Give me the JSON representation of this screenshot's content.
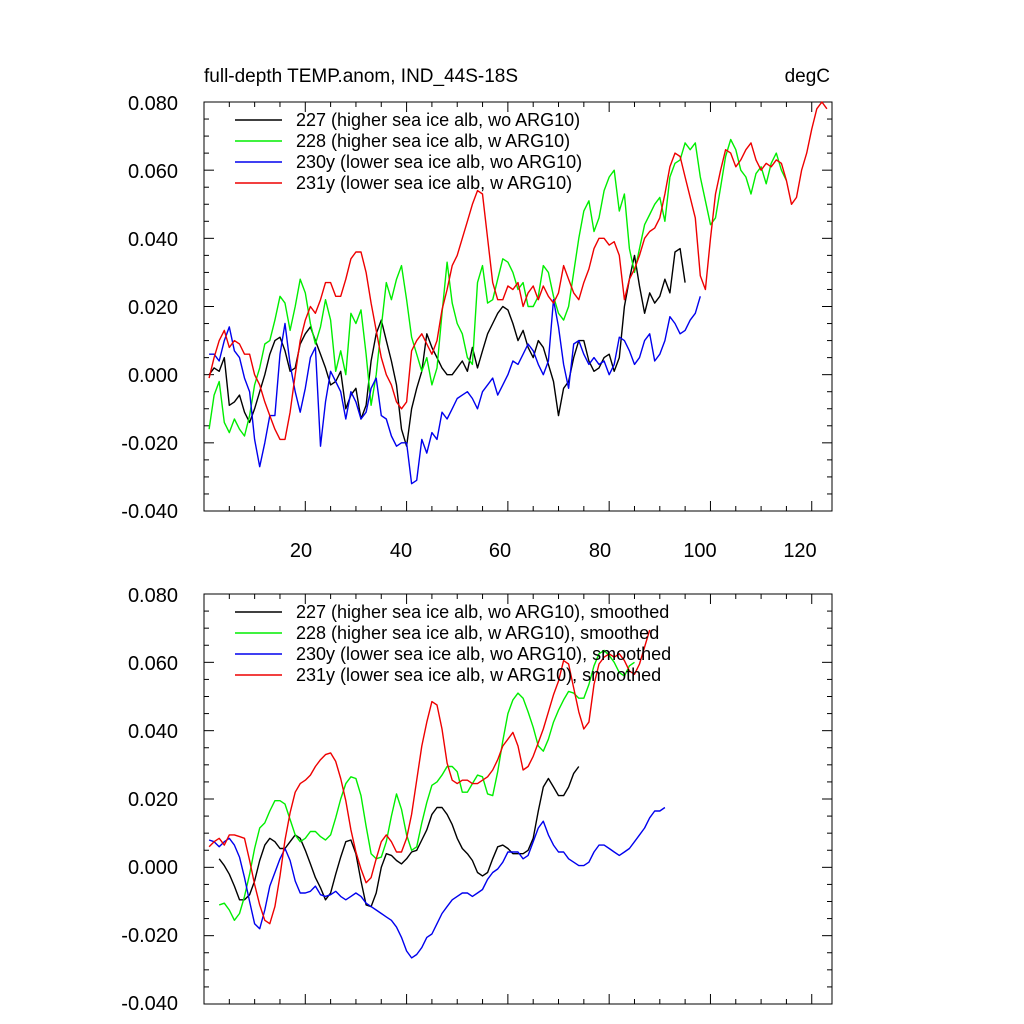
{
  "chart_data": [
    {
      "type": "line",
      "title": "full-depth TEMP.anom, IND_44S-18S",
      "units": "degC",
      "xlabel": "",
      "ylabel": "",
      "xlim": [
        0,
        124
      ],
      "ylim": [
        -0.04,
        0.08
      ],
      "xticks": [
        "20",
        "40",
        "60",
        "80",
        "100",
        "120"
      ],
      "yticks": [
        "-0.040",
        "-0.020",
        "0.000",
        "0.020",
        "0.040",
        "0.060",
        "0.080"
      ],
      "legend_position": "top-left",
      "series": [
        {
          "name": "227 (higher sea ice alb, wo ARG10)",
          "color": "#000000",
          "x0": 1,
          "values": [
            0.0,
            0.002,
            0.001,
            0.005,
            -0.009,
            -0.008,
            -0.006,
            -0.011,
            -0.014,
            -0.01,
            -0.005,
            0.0,
            0.006,
            0.01,
            0.011,
            0.007,
            0.001,
            0.002,
            0.009,
            0.012,
            0.014,
            0.01,
            0.006,
            0.002,
            -0.003,
            -0.002,
            0.001,
            -0.01,
            -0.006,
            -0.004,
            -0.013,
            -0.009,
            0.004,
            0.012,
            0.016,
            0.01,
            0.004,
            -0.003,
            -0.016,
            -0.021,
            -0.01,
            -0.004,
            0.001,
            0.012,
            0.008,
            0.005,
            0.002,
            0.0,
            0.0,
            0.002,
            0.004,
            0.001,
            0.008,
            0.002,
            0.007,
            0.012,
            0.015,
            0.018,
            0.02,
            0.019,
            0.015,
            0.01,
            0.013,
            0.008,
            0.005,
            0.01,
            0.008,
            0.003,
            -0.002,
            -0.012,
            -0.004,
            -0.002,
            0.005,
            0.01,
            0.01,
            0.004,
            0.001,
            0.002,
            0.005,
            0.006,
            0.001,
            0.005,
            0.02,
            0.028,
            0.035,
            0.026,
            0.018,
            0.024,
            0.021,
            0.023,
            0.028,
            0.024,
            0.036,
            0.037,
            0.027
          ]
        },
        {
          "name": "228 (higher sea ice alb, w ARG10)",
          "color": "#00ee00",
          "x0": 1,
          "values": [
            -0.016,
            -0.006,
            -0.002,
            -0.014,
            -0.017,
            -0.013,
            -0.016,
            -0.018,
            -0.012,
            -0.003,
            0.002,
            0.009,
            0.01,
            0.016,
            0.023,
            0.021,
            0.013,
            0.02,
            0.028,
            0.024,
            0.015,
            0.009,
            0.014,
            0.022,
            0.016,
            0.001,
            0.007,
            0.0,
            0.018,
            0.015,
            0.019,
            0.006,
            -0.009,
            0.0,
            0.014,
            0.027,
            0.022,
            0.028,
            0.032,
            0.022,
            0.011,
            0.006,
            0.001,
            0.005,
            -0.003,
            0.002,
            0.018,
            0.033,
            0.021,
            0.015,
            0.012,
            0.005,
            0.003,
            0.027,
            0.032,
            0.021,
            0.022,
            0.028,
            0.034,
            0.033,
            0.03,
            0.025,
            0.027,
            0.02,
            0.02,
            0.023,
            0.032,
            0.03,
            0.023,
            0.018,
            0.016,
            0.02,
            0.03,
            0.04,
            0.048,
            0.051,
            0.042,
            0.046,
            0.054,
            0.058,
            0.06,
            0.048,
            0.053,
            0.037,
            0.03,
            0.037,
            0.044,
            0.047,
            0.05,
            0.052,
            0.045,
            0.058,
            0.062,
            0.063,
            0.068,
            0.066,
            0.068,
            0.058,
            0.051,
            0.044,
            0.046,
            0.055,
            0.064,
            0.069,
            0.066,
            0.06,
            0.058,
            0.053,
            0.059,
            0.061,
            0.056,
            0.062,
            0.065,
            0.06,
            0.057
          ]
        },
        {
          "name": "230y (lower sea ice alb, wo ARG10)",
          "color": "#0000ee",
          "x0": 1,
          "values": [
            0.006,
            0.006,
            0.004,
            0.01,
            0.014,
            0.007,
            0.005,
            -0.001,
            -0.005,
            -0.019,
            -0.027,
            -0.02,
            -0.012,
            -0.012,
            0.006,
            0.015,
            0.003,
            -0.005,
            -0.011,
            -0.004,
            0.005,
            0.008,
            -0.021,
            -0.008,
            0.001,
            -0.002,
            -0.005,
            -0.013,
            -0.005,
            -0.008,
            -0.013,
            -0.011,
            -0.004,
            -0.001,
            -0.012,
            -0.013,
            -0.018,
            -0.021,
            -0.02,
            -0.02,
            -0.032,
            -0.031,
            -0.019,
            -0.023,
            -0.017,
            -0.019,
            -0.011,
            -0.013,
            -0.01,
            -0.007,
            -0.006,
            -0.005,
            -0.007,
            -0.01,
            -0.005,
            -0.003,
            -0.001,
            -0.006,
            -0.003,
            0.0,
            0.004,
            0.003,
            0.006,
            0.009,
            0.007,
            0.003,
            0.0,
            0.004,
            0.022,
            0.014,
            0.003,
            -0.004,
            0.009,
            0.01,
            0.006,
            0.003,
            0.005,
            0.003,
            0.004,
            0.0,
            0.003,
            0.011,
            0.01,
            0.007,
            0.003,
            0.005,
            0.01,
            0.012,
            0.004,
            0.006,
            0.01,
            0.017,
            0.015,
            0.012,
            0.013,
            0.016,
            0.018,
            0.023
          ]
        },
        {
          "name": "231y (lower sea ice alb, w ARG10)",
          "color": "#ee0000",
          "x0": 1,
          "values": [
            -0.001,
            0.005,
            0.01,
            0.013,
            0.008,
            0.01,
            0.009,
            0.006,
            0.006,
            0.0,
            -0.003,
            -0.008,
            -0.012,
            -0.016,
            -0.019,
            -0.019,
            -0.011,
            0.0,
            0.01,
            0.016,
            0.02,
            0.018,
            0.022,
            0.027,
            0.027,
            0.023,
            0.023,
            0.028,
            0.034,
            0.036,
            0.036,
            0.03,
            0.021,
            0.013,
            0.005,
            0.0,
            -0.003,
            -0.008,
            -0.01,
            -0.008,
            0.007,
            0.01,
            0.012,
            0.009,
            0.006,
            0.01,
            0.019,
            0.025,
            0.032,
            0.035,
            0.04,
            0.045,
            0.05,
            0.054,
            0.053,
            0.04,
            0.027,
            0.022,
            0.022,
            0.026,
            0.025,
            0.027,
            0.02,
            0.024,
            0.026,
            0.022,
            0.026,
            0.023,
            0.021,
            0.024,
            0.032,
            0.028,
            0.024,
            0.022,
            0.027,
            0.031,
            0.037,
            0.04,
            0.04,
            0.038,
            0.039,
            0.035,
            0.022,
            0.028,
            0.031,
            0.035,
            0.04,
            0.042,
            0.043,
            0.046,
            0.053,
            0.061,
            0.065,
            0.064,
            0.058,
            0.052,
            0.046,
            0.029,
            0.025,
            0.04,
            0.053,
            0.06,
            0.066,
            0.065,
            0.061,
            0.063,
            0.066,
            0.068,
            0.063,
            0.06,
            0.062,
            0.061,
            0.063,
            0.062,
            0.057,
            0.05,
            0.052,
            0.06,
            0.065,
            0.072,
            0.078,
            0.08,
            0.078
          ]
        }
      ]
    },
    {
      "type": "line",
      "title": "",
      "xlabel": "",
      "ylabel": "",
      "xlim": [
        0,
        124
      ],
      "ylim": [
        -0.04,
        0.08
      ],
      "yticks": [
        "-0.040",
        "-0.020",
        "0.000",
        "0.020",
        "0.040",
        "0.060",
        "0.080"
      ],
      "legend_position": "top-left",
      "series": [
        {
          "name": "227 (higher sea ice alb, wo ARG10), smoothed",
          "color": "#000000",
          "x0": 3,
          "values": [
            0.0025,
            0.0005,
            -0.002,
            -0.0055,
            -0.0095,
            -0.0095,
            -0.008,
            -0.004,
            0.002,
            0.0065,
            0.0085,
            0.0075,
            0.0055,
            0.0055,
            0.0075,
            0.0095,
            0.0085,
            0.005,
            0.001,
            -0.003,
            -0.006,
            -0.0095,
            -0.0075,
            -0.002,
            0.003,
            0.0075,
            0.008,
            0.004,
            -0.004,
            -0.011,
            -0.0115,
            -0.0075,
            0.0,
            0.004,
            0.0035,
            0.002,
            0.001,
            0.0025,
            0.0045,
            0.005,
            0.008,
            0.011,
            0.0155,
            0.0175,
            0.0175,
            0.0155,
            0.0125,
            0.0085,
            0.0055,
            0.004,
            0.002,
            -0.0015,
            -0.0025,
            -0.0015,
            0.0025,
            0.006,
            0.0065,
            0.0055,
            0.004,
            0.004,
            0.004,
            0.005,
            0.0085,
            0.0165,
            0.0235,
            0.026,
            0.0235,
            0.021,
            0.021,
            0.0235,
            0.0275,
            0.0295
          ]
        },
        {
          "name": "228 (higher sea ice alb, w ARG10), smoothed",
          "color": "#00ee00",
          "x0": 3,
          "values": [
            -0.011,
            -0.0105,
            -0.0125,
            -0.0155,
            -0.0135,
            -0.0085,
            -0.002,
            0.0055,
            0.0115,
            0.013,
            0.0165,
            0.0195,
            0.0195,
            0.0185,
            0.014,
            0.0095,
            0.0075,
            0.0085,
            0.0105,
            0.0105,
            0.009,
            0.008,
            0.0095,
            0.0145,
            0.02,
            0.0245,
            0.0265,
            0.026,
            0.021,
            0.012,
            0.004,
            0.0025,
            0.003,
            0.0075,
            0.015,
            0.0215,
            0.017,
            0.0095,
            0.005,
            0.006,
            0.013,
            0.019,
            0.024,
            0.025,
            0.027,
            0.0295,
            0.0295,
            0.028,
            0.022,
            0.022,
            0.0245,
            0.027,
            0.0265,
            0.0215,
            0.021,
            0.028,
            0.037,
            0.045,
            0.049,
            0.051,
            0.0495,
            0.0455,
            0.041,
            0.0355,
            0.034,
            0.0375,
            0.0425,
            0.046,
            0.049,
            0.0515,
            0.051,
            0.0495,
            0.0495,
            0.0535,
            0.059,
            0.0625,
            0.0635,
            0.062,
            0.06,
            0.057,
            0.056,
            0.059,
            0.06
          ]
        },
        {
          "name": "230y (lower sea ice alb, wo ARG10), smoothed",
          "color": "#0000ee",
          "x0": 1,
          "values": [
            0.008,
            0.0075,
            0.006,
            0.0075,
            0.0085,
            0.0065,
            0.003,
            -0.003,
            -0.01,
            -0.0165,
            -0.018,
            -0.0125,
            -0.0055,
            -0.0015,
            0.0025,
            0.0055,
            0.002,
            -0.004,
            -0.0075,
            -0.0075,
            -0.007,
            -0.0055,
            -0.008,
            -0.0085,
            -0.008,
            -0.007,
            -0.0085,
            -0.0095,
            -0.0085,
            -0.0075,
            -0.0085,
            -0.0105,
            -0.0115,
            -0.0125,
            -0.0135,
            -0.0145,
            -0.0155,
            -0.0175,
            -0.0205,
            -0.0245,
            -0.0265,
            -0.0255,
            -0.0235,
            -0.0205,
            -0.0195,
            -0.0165,
            -0.0135,
            -0.0115,
            -0.0095,
            -0.0085,
            -0.0075,
            -0.0075,
            -0.0085,
            -0.0075,
            -0.0065,
            -0.0035,
            -0.0015,
            -0.0005,
            0.0015,
            0.0045,
            0.0045,
            0.0045,
            0.0025,
            0.0035,
            0.0075,
            0.0115,
            0.0135,
            0.0095,
            0.0065,
            0.0045,
            0.0045,
            0.0025,
            0.0015,
            0.0005,
            0.0005,
            0.0015,
            0.0045,
            0.0065,
            0.0065,
            0.0055,
            0.0045,
            0.0035,
            0.0045,
            0.0055,
            0.0075,
            0.0095,
            0.0115,
            0.0145,
            0.0165,
            0.0165,
            0.0175
          ]
        },
        {
          "name": "231y (lower sea ice alb, w ARG10), smoothed",
          "color": "#ee0000",
          "x0": 1,
          "values": [
            0.006,
            0.0075,
            0.0085,
            0.0065,
            0.0095,
            0.0095,
            0.009,
            0.0085,
            0.002,
            -0.005,
            -0.011,
            -0.0155,
            -0.0165,
            -0.0115,
            -0.0025,
            0.008,
            0.016,
            0.022,
            0.0245,
            0.0255,
            0.027,
            0.0295,
            0.0315,
            0.033,
            0.0335,
            0.031,
            0.026,
            0.0195,
            0.011,
            0.0045,
            -0.0005,
            -0.0045,
            -0.003,
            0.0025,
            0.0075,
            0.0095,
            0.0075,
            0.0045,
            0.0045,
            0.0085,
            0.0155,
            0.0255,
            0.0355,
            0.0425,
            0.0485,
            0.0475,
            0.0405,
            0.0305,
            0.0255,
            0.0245,
            0.0255,
            0.0255,
            0.0245,
            0.0245,
            0.0255,
            0.0265,
            0.0285,
            0.0315,
            0.0355,
            0.0375,
            0.0395,
            0.0355,
            0.0285,
            0.0295,
            0.0325,
            0.0365,
            0.0405,
            0.0455,
            0.0505,
            0.0545,
            0.0605,
            0.0595,
            0.0525,
            0.0455,
            0.0405,
            0.0425,
            0.0535,
            0.0595,
            0.0615,
            0.0625,
            0.0615,
            0.0625,
            0.0605,
            0.0575,
            0.0565,
            0.0595,
            0.0645,
            0.0695
          ]
        }
      ]
    }
  ]
}
